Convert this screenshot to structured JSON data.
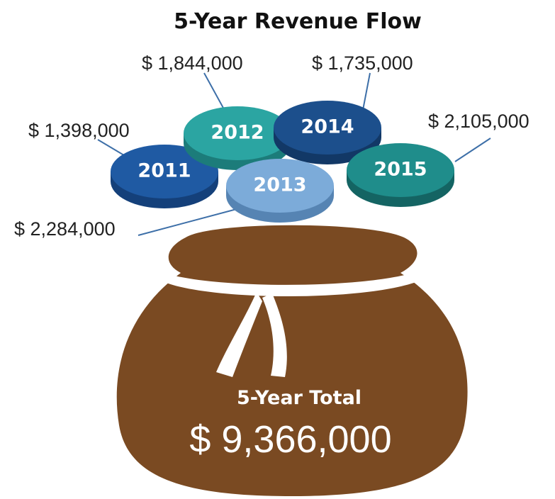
{
  "title": "5-Year Revenue Flow",
  "coins": [
    {
      "year": "2011",
      "amount": "$ 1,398,000"
    },
    {
      "year": "2012",
      "amount": "$ 1,844,000"
    },
    {
      "year": "2014",
      "amount": "$ 1,735,000"
    },
    {
      "year": "2015",
      "amount": "$ 2,105,000"
    },
    {
      "year": "2013",
      "amount": "$ 2,284,000"
    }
  ],
  "total": {
    "label": "5-Year Total",
    "amount": "$ 9,366,000"
  }
}
